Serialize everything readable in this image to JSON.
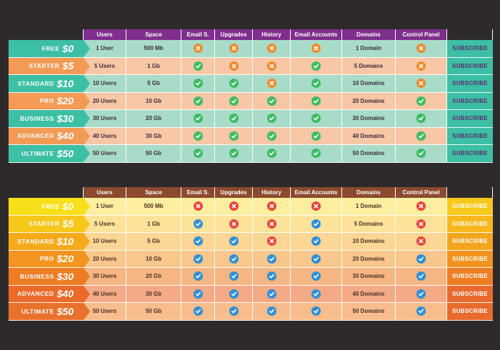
{
  "headers": [
    "Users",
    "Space",
    "Email S.",
    "Upgrades",
    "History",
    "Email Accounts",
    "Domains",
    "Control Panel"
  ],
  "subscribe_label": "SUBSCRIBE",
  "plans": [
    {
      "name": "FREE",
      "price": "$0",
      "users": "1 User",
      "space": "500 Mb",
      "domains": "1 Domain",
      "features": [
        false,
        false,
        false,
        false,
        false
      ]
    },
    {
      "name": "STARTER",
      "price": "$5",
      "users": "5 Users",
      "space": "1 Gb",
      "domains": "5 Domains",
      "features": [
        true,
        false,
        false,
        true,
        false
      ]
    },
    {
      "name": "STANDARD",
      "price": "$10",
      "users": "10 Users",
      "space": "5 Gb",
      "domains": "10 Domains",
      "features": [
        true,
        true,
        false,
        true,
        false
      ]
    },
    {
      "name": "PRO",
      "price": "$20",
      "users": "20 Users",
      "space": "10 Gb",
      "domains": "20 Domains",
      "features": [
        true,
        true,
        true,
        true,
        true
      ]
    },
    {
      "name": "BUSINESS",
      "price": "$30",
      "users": "30 Users",
      "space": "20 Gb",
      "domains": "30 Domains",
      "features": [
        true,
        true,
        true,
        true,
        true
      ]
    },
    {
      "name": "ADVANCED",
      "price": "$40",
      "users": "40 Users",
      "space": "30 Gb",
      "domains": "40 Domains",
      "features": [
        true,
        true,
        true,
        true,
        true
      ]
    },
    {
      "name": "ULTIMATE",
      "price": "$50",
      "users": "50 Users",
      "space": "50 Gb",
      "domains": "50 Domains",
      "features": [
        true,
        true,
        true,
        true,
        true
      ]
    }
  ],
  "tables": [
    {
      "style": "teal-orange",
      "header_bg": "#7e2e8c",
      "check_color": "#3dbb63",
      "cross_color": "#f08a2c"
    },
    {
      "style": "yellow-orange-gradient",
      "header_bg": "#8b4a2e",
      "check_color": "#2f8fd6",
      "cross_color": "#e8453c",
      "plan_colors": [
        "#f7e01a",
        "#f7c71a",
        "#f5aa1c",
        "#f39420",
        "#ee7c22",
        "#eb6a2a",
        "#e8722c"
      ],
      "row_colors": [
        "#fdeea0",
        "#fde39a",
        "#fbd694",
        "#f9c68c",
        "#f6b684",
        "#f4a987",
        "#f7bd8c"
      ],
      "subscribe_colors": [
        "#f7c91a",
        "#f6b81c",
        "#f4a51e",
        "#f29320",
        "#ef7e22",
        "#e96a2c",
        "#e86a2c"
      ]
    }
  ]
}
